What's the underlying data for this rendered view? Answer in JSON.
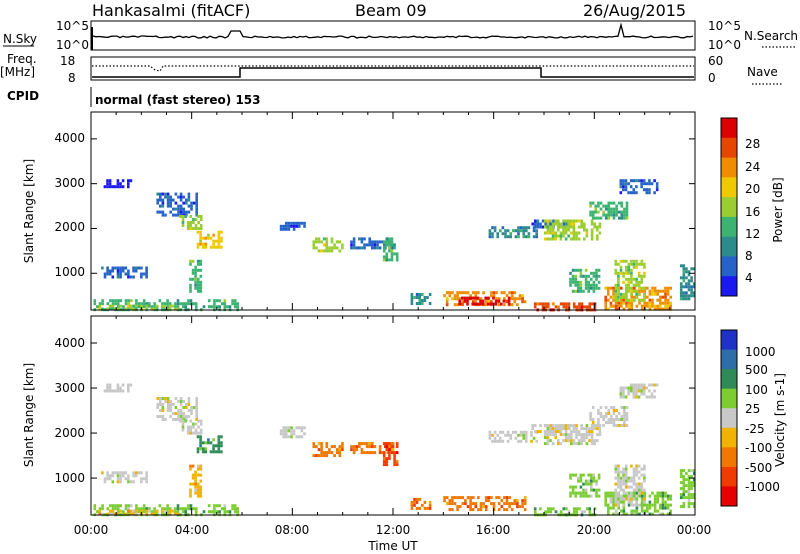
{
  "header": {
    "station": "Hankasalmi (fitACF)",
    "beam": "Beam 09",
    "date": "26/Aug/2015"
  },
  "top_panels": {
    "nsky_label": "N.Sky",
    "nsearch_label": "N.Search",
    "nsky_ticks": [
      "10^5",
      "10^0"
    ],
    "nsearch_ticks": [
      "10^5",
      "10^0"
    ],
    "freq_label": "Freq.",
    "freq_unit": "[MHz]",
    "freq_ticks": [
      "18",
      "8"
    ],
    "nave_label": "Nave",
    "nave_ticks": [
      "60",
      "0"
    ],
    "cpid_label": "CPID",
    "cpid_text": "normal (fast stereo) 153"
  },
  "chart_data": [
    {
      "type": "heatmap",
      "name": "power-panel",
      "ylabel": "Slant Range [km]",
      "ylim": [
        180,
        4600
      ],
      "xlim": [
        0,
        24
      ],
      "yticks": [
        "1000",
        "2000",
        "3000",
        "4000"
      ],
      "colorbar": {
        "label": "Power [dB]",
        "ticks": [
          "4",
          "8",
          "12",
          "16",
          "20",
          "24",
          "28"
        ],
        "colors": [
          "#1a1af0",
          "#2563c8",
          "#2e8b8b",
          "#3cb371",
          "#9acd32",
          "#f0c800",
          "#f08c00",
          "#e64600",
          "#dc0000"
        ]
      },
      "regions": [
        {
          "x0": 0.1,
          "x1": 5.9,
          "y0": 180,
          "y1": 420,
          "color": 3
        },
        {
          "x0": 0.3,
          "x1": 3.5,
          "y0": 180,
          "y1": 300,
          "color": 4
        },
        {
          "x0": 0.4,
          "x1": 2.2,
          "y0": 900,
          "y1": 1150,
          "color": 1
        },
        {
          "x0": 0.5,
          "x1": 1.6,
          "y0": 2950,
          "y1": 3100,
          "color": 0
        },
        {
          "x0": 2.6,
          "x1": 4.2,
          "y0": 2300,
          "y1": 2800,
          "color": 1
        },
        {
          "x0": 3.5,
          "x1": 4.4,
          "y0": 2000,
          "y1": 2300,
          "color": 4
        },
        {
          "x0": 4.2,
          "x1": 5.2,
          "y0": 1600,
          "y1": 1950,
          "color": 5
        },
        {
          "x0": 3.9,
          "x1": 4.4,
          "y0": 600,
          "y1": 1300,
          "color": 3
        },
        {
          "x0": 7.5,
          "x1": 8.5,
          "y0": 1950,
          "y1": 2150,
          "color": 1
        },
        {
          "x0": 8.8,
          "x1": 10.0,
          "y0": 1500,
          "y1": 1800,
          "color": 4
        },
        {
          "x0": 10.3,
          "x1": 12.0,
          "y0": 1550,
          "y1": 1800,
          "color": 1
        },
        {
          "x0": 11.6,
          "x1": 12.2,
          "y0": 1300,
          "y1": 1800,
          "color": 3
        },
        {
          "x0": 12.7,
          "x1": 13.5,
          "y0": 330,
          "y1": 560,
          "color": 2
        },
        {
          "x0": 14.0,
          "x1": 17.3,
          "y0": 300,
          "y1": 600,
          "color": 6
        },
        {
          "x0": 14.6,
          "x1": 16.6,
          "y0": 280,
          "y1": 480,
          "color": 8
        },
        {
          "x0": 15.8,
          "x1": 17.7,
          "y0": 1800,
          "y1": 2050,
          "color": 2
        },
        {
          "x0": 17.5,
          "x1": 19.0,
          "y0": 2050,
          "y1": 2200,
          "color": 1
        },
        {
          "x0": 18.0,
          "x1": 20.2,
          "y0": 1750,
          "y1": 2200,
          "color": 4
        },
        {
          "x0": 19.8,
          "x1": 21.3,
          "y0": 2200,
          "y1": 2600,
          "color": 3
        },
        {
          "x0": 21.0,
          "x1": 22.5,
          "y0": 2800,
          "y1": 3100,
          "color": 1
        },
        {
          "x0": 17.6,
          "x1": 20.0,
          "y0": 180,
          "y1": 350,
          "color": 7
        },
        {
          "x0": 20.4,
          "x1": 23.0,
          "y0": 200,
          "y1": 700,
          "color": 6
        },
        {
          "x0": 20.8,
          "x1": 22.0,
          "y0": 400,
          "y1": 1300,
          "color": 4
        },
        {
          "x0": 19.0,
          "x1": 20.2,
          "y0": 600,
          "y1": 1100,
          "color": 3
        },
        {
          "x0": 23.4,
          "x1": 24.0,
          "y0": 400,
          "y1": 1200,
          "color": 2
        }
      ]
    },
    {
      "type": "heatmap",
      "name": "velocity-panel",
      "ylabel": "Slant Range [km]",
      "ylim": [
        180,
        4600
      ],
      "xlim": [
        0,
        24
      ],
      "yticks": [
        "1000",
        "2000",
        "3000",
        "4000"
      ],
      "xticks": [
        "00:00",
        "04:00",
        "08:00",
        "12:00",
        "16:00",
        "20:00",
        "00:00"
      ],
      "xlabel": "Time UT",
      "colorbar": {
        "label": "Velocity [m s-1]",
        "ticks": [
          "1000",
          "500",
          "100",
          "25",
          "-25",
          "-100",
          "-500",
          "-1000"
        ],
        "colors": [
          "#1e32c8",
          "#2d6ea8",
          "#2e8b57",
          "#7ccd32",
          "#c8c8c8",
          "#f0b400",
          "#f07800",
          "#f03c00",
          "#e60000"
        ]
      },
      "regions": [
        {
          "x0": 0.1,
          "x1": 5.9,
          "y0": 180,
          "y1": 420,
          "color": 3
        },
        {
          "x0": 0.3,
          "x1": 3.5,
          "y0": 180,
          "y1": 300,
          "color": 5
        },
        {
          "x0": 0.4,
          "x1": 2.2,
          "y0": 900,
          "y1": 1150,
          "color": 4
        },
        {
          "x0": 0.5,
          "x1": 1.6,
          "y0": 2950,
          "y1": 3100,
          "color": 4
        },
        {
          "x0": 2.6,
          "x1": 4.2,
          "y0": 2300,
          "y1": 2800,
          "color": 4
        },
        {
          "x0": 3.5,
          "x1": 4.4,
          "y0": 2000,
          "y1": 2300,
          "color": 4
        },
        {
          "x0": 4.2,
          "x1": 5.2,
          "y0": 1600,
          "y1": 1950,
          "color": 2
        },
        {
          "x0": 3.9,
          "x1": 4.4,
          "y0": 600,
          "y1": 1300,
          "color": 5
        },
        {
          "x0": 7.5,
          "x1": 8.5,
          "y0": 1950,
          "y1": 2150,
          "color": 4
        },
        {
          "x0": 8.8,
          "x1": 10.0,
          "y0": 1500,
          "y1": 1800,
          "color": 6
        },
        {
          "x0": 10.3,
          "x1": 12.0,
          "y0": 1550,
          "y1": 1800,
          "color": 6
        },
        {
          "x0": 11.6,
          "x1": 12.2,
          "y0": 1300,
          "y1": 1800,
          "color": 7
        },
        {
          "x0": 12.7,
          "x1": 13.5,
          "y0": 330,
          "y1": 560,
          "color": 6
        },
        {
          "x0": 14.0,
          "x1": 17.3,
          "y0": 300,
          "y1": 600,
          "color": 6
        },
        {
          "x0": 15.8,
          "x1": 17.7,
          "y0": 1800,
          "y1": 2050,
          "color": 4
        },
        {
          "x0": 17.5,
          "x1": 19.0,
          "y0": 2050,
          "y1": 2200,
          "color": 4
        },
        {
          "x0": 18.0,
          "x1": 20.2,
          "y0": 1750,
          "y1": 2200,
          "color": 4
        },
        {
          "x0": 19.8,
          "x1": 21.3,
          "y0": 2200,
          "y1": 2600,
          "color": 4
        },
        {
          "x0": 21.0,
          "x1": 22.5,
          "y0": 2800,
          "y1": 3100,
          "color": 4
        },
        {
          "x0": 17.6,
          "x1": 20.0,
          "y0": 180,
          "y1": 350,
          "color": 3
        },
        {
          "x0": 20.4,
          "x1": 23.0,
          "y0": 200,
          "y1": 700,
          "color": 3
        },
        {
          "x0": 20.8,
          "x1": 22.0,
          "y0": 400,
          "y1": 1300,
          "color": 4
        },
        {
          "x0": 19.0,
          "x1": 20.2,
          "y0": 600,
          "y1": 1100,
          "color": 3
        },
        {
          "x0": 23.4,
          "x1": 24.0,
          "y0": 400,
          "y1": 1200,
          "color": 3
        }
      ]
    }
  ]
}
